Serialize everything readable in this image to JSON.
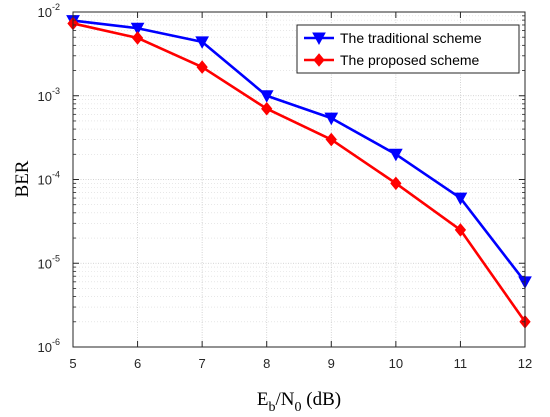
{
  "chart_data": {
    "type": "line",
    "xlabel": {
      "base": "E",
      "sub1": "b",
      "mid": "/N",
      "sub2": "0",
      "tail": " (dB)"
    },
    "ylabel": "BER",
    "xlim": [
      5,
      12
    ],
    "ylim": [
      1e-06,
      0.01
    ],
    "yscale": "log",
    "grid": true,
    "minor_grid": true,
    "legend_position": "top-right",
    "x_ticks": [
      "5",
      "6",
      "7",
      "8",
      "9",
      "10",
      "11",
      "12"
    ],
    "y_ticks": [
      {
        "base": "10",
        "exp": "-6"
      },
      {
        "base": "10",
        "exp": "-5"
      },
      {
        "base": "10",
        "exp": "-4"
      },
      {
        "base": "10",
        "exp": "-3"
      },
      {
        "base": "10",
        "exp": "-2"
      }
    ],
    "x": [
      5,
      6,
      7,
      8,
      9,
      10,
      11,
      12
    ],
    "series": [
      {
        "name": "The traditional scheme",
        "color": "#0000ff",
        "marker": "triangle-down",
        "values": [
          0.0079,
          0.0064,
          0.0044,
          0.001,
          0.00054,
          0.0002,
          6e-05,
          6e-06
        ]
      },
      {
        "name": "The proposed scheme",
        "color": "#ff0000",
        "marker": "diamond",
        "values": [
          0.0073,
          0.0049,
          0.0022,
          0.0007,
          0.0003,
          9e-05,
          2.5e-05,
          2e-06
        ]
      }
    ]
  }
}
